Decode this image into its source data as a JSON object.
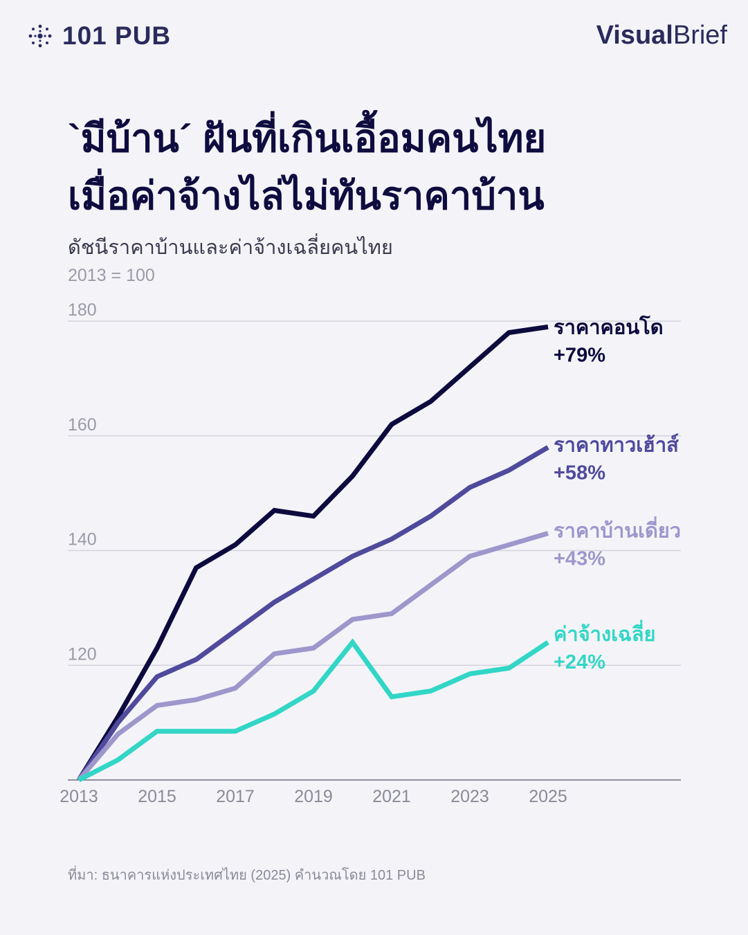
{
  "brand": {
    "logo_text": "101 PUB",
    "right_bold": "Visual",
    "right_light": "Brief"
  },
  "title": {
    "line1": "`มีบ้าน´ ฝันที่เกินเอื้อมคนไทย",
    "line2": "เมื่อค่าจ้างไล่ไม่ทันราคาบ้าน"
  },
  "subtitle": "ดัชนีราคาบ้านและค่าจ้างเฉลี่ยคนไทย",
  "base_note": "2013 = 100",
  "source": "ที่มา: ธนาคารแห่งประเทศไทย (2025) คำนวณโดย 101 PUB",
  "chart_data": {
    "type": "line",
    "x": [
      2013,
      2014,
      2015,
      2016,
      2017,
      2018,
      2019,
      2020,
      2021,
      2022,
      2023,
      2024,
      2025
    ],
    "x_tick_labels": [
      "2013",
      "2015",
      "2017",
      "2019",
      "2021",
      "2023",
      "2025"
    ],
    "y_ticks": [
      180,
      160,
      140,
      120
    ],
    "ylim": [
      100,
      180
    ],
    "grid": true,
    "series": [
      {
        "name": "ราคาคอนโด",
        "change": "+79%",
        "color": "#0d0a3e",
        "values": [
          100,
          111,
          123,
          137,
          141,
          147,
          146,
          153,
          162,
          166,
          172,
          178,
          179
        ]
      },
      {
        "name": "ราคาทาวเฮ้าส์",
        "change": "+58%",
        "color": "#4f4a9c",
        "values": [
          100,
          110,
          118,
          121,
          126,
          131,
          135,
          139,
          142,
          146,
          151,
          154,
          158
        ]
      },
      {
        "name": "ราคาบ้านเดี่ยว",
        "change": "+43%",
        "color": "#9d97cc",
        "values": [
          100,
          108,
          113,
          114,
          116,
          122,
          123,
          128,
          129,
          134,
          139,
          141,
          143
        ]
      },
      {
        "name": "ค่าจ้างเฉลี่ย",
        "change": "+24%",
        "color": "#32d6c6",
        "values": [
          100,
          103.5,
          108.5,
          108.5,
          108.5,
          111.5,
          115.5,
          124,
          114.5,
          115.5,
          118.5,
          119.5,
          124
        ]
      }
    ]
  }
}
